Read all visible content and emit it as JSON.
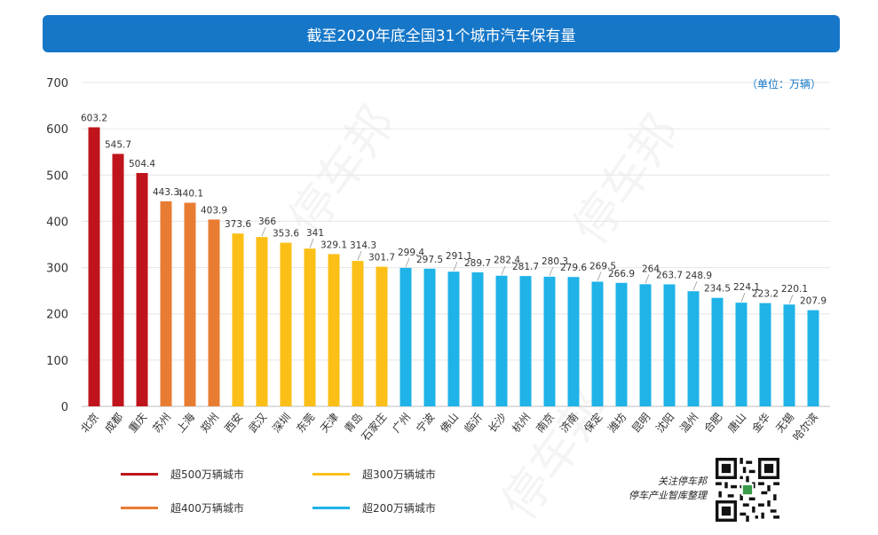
{
  "title": "截至2020年底全国31个城市汽车保有量",
  "unit_note": "（单位：万辆）",
  "credit": {
    "line1": "关注停车邦",
    "line2": "停车产业智库整理"
  },
  "watermark": "停车邦",
  "colors": {
    "c500": "#c0141c",
    "c400": "#e97c33",
    "c300": "#fbbf17",
    "c200": "#1fb3e7"
  },
  "legend": [
    {
      "label": "超500万辆城市",
      "color": "#c0141c"
    },
    {
      "label": "超300万辆城市",
      "color": "#fbbf17"
    },
    {
      "label": "超400万辆城市",
      "color": "#e97c33"
    },
    {
      "label": "超200万辆城市",
      "color": "#1fb3e7"
    }
  ],
  "chart_data": {
    "type": "bar",
    "title": "截至2020年底全国31个城市汽车保有量",
    "ylabel": "万辆",
    "ylim": [
      0,
      700
    ],
    "yticks": [
      0,
      100,
      200,
      300,
      400,
      500,
      600,
      700
    ],
    "grid": true,
    "categories": [
      "北京",
      "成都",
      "重庆",
      "苏州",
      "上海",
      "郑州",
      "西安",
      "武汉",
      "深圳",
      "东莞",
      "天津",
      "青岛",
      "石家庄",
      "广州",
      "宁波",
      "佛山",
      "临沂",
      "长沙",
      "杭州",
      "南京",
      "济南",
      "保定",
      "潍坊",
      "昆明",
      "沈阳",
      "温州",
      "合肥",
      "唐山",
      "金华",
      "无锡",
      "哈尔滨"
    ],
    "values": [
      603.2,
      545.7,
      504.4,
      443.3,
      440.1,
      403.9,
      373.6,
      366,
      353.6,
      341,
      329.1,
      314.3,
      301.7,
      299.4,
      297.5,
      291.1,
      289.7,
      282.4,
      281.7,
      280.3,
      279.6,
      269.5,
      266.9,
      264,
      263.7,
      248.9,
      234.5,
      224.1,
      223.2,
      220.1,
      207.9
    ],
    "labels": [
      "603.2",
      "545.7",
      "504.4",
      "443.3",
      "440.1",
      "403.9",
      "373.6",
      "366",
      "353.6",
      "341",
      "329.1",
      "314.3",
      "301.7",
      "299.4",
      "297.5",
      "291.1",
      "289.7",
      "282.4",
      "281.7",
      "280.3",
      "279.6",
      "269.5",
      "266.9",
      "264",
      "263.7",
      "248.9",
      "234.5",
      "224.1",
      "223.2",
      "220.1",
      "207.9"
    ]
  }
}
